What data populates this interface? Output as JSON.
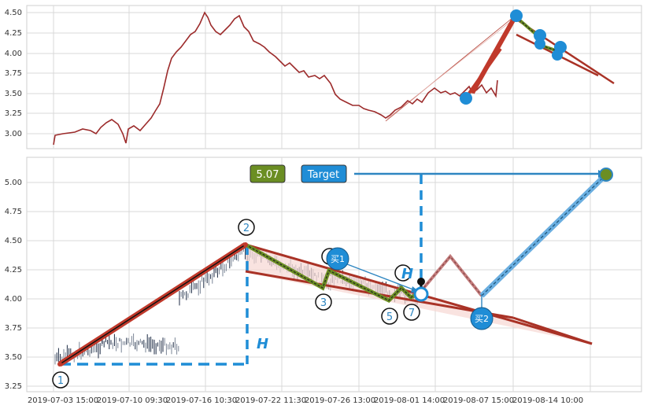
{
  "chart_data": [
    {
      "type": "line",
      "panel": "overview",
      "ylim": [
        2.8,
        4.58
      ],
      "yticks": [
        "3.00",
        "3.25",
        "3.50",
        "3.75",
        "4.00",
        "4.25",
        "4.50"
      ],
      "series": [
        {
          "values": [
            2.86,
            2.98,
            3.0,
            3.02,
            3.03,
            3.06,
            3.05,
            3.09,
            3.12,
            3.16,
            3.14,
            3.1,
            2.91,
            3.08,
            3.12,
            3.12,
            3.26,
            3.45,
            3.75,
            3.9,
            4.05,
            4.12,
            4.25,
            4.44,
            4.5,
            4.36,
            4.28,
            4.25,
            4.32,
            4.42,
            4.45,
            4.3,
            4.25,
            4.2,
            4.18,
            4.05,
            3.98,
            3.93,
            3.86,
            3.78,
            3.72,
            3.67,
            3.62,
            3.55,
            3.45,
            3.34,
            3.32,
            3.28,
            3.22,
            3.24,
            3.17,
            3.21,
            3.24,
            3.3,
            3.36,
            3.4,
            3.45,
            3.42,
            3.44,
            3.5,
            3.46,
            3.52,
            3.4
          ]
        }
      ],
      "overlays": {
        "up_thick": [
          [
            3.43,
            3.32
          ],
          [
            4.28,
            3.86
          ],
          [
            4.42,
            4.42
          ]
        ],
        "dots": [
          3.43,
          4.46,
          4.23,
          4.11,
          4.19,
          3.99,
          4.06
        ],
        "fan_lines": [
          [
            4.42,
            3.62
          ],
          [
            4.4,
            4.0
          ]
        ],
        "thin_up": [
          [
            3.16,
            4.44
          ]
        ]
      }
    },
    {
      "type": "line",
      "panel": "detail",
      "ylim": [
        3.22,
        5.17
      ],
      "yticks": [
        "3.25",
        "3.50",
        "3.75",
        "4.00",
        "4.25",
        "4.50",
        "4.75",
        "5.00"
      ],
      "xticks": [
        "2019-07-03 15:00",
        "2019-07-10 09:30",
        "2019-07-16 10:30",
        "2019-07-22 11:30",
        "2019-07-26 13:00",
        "2019-08-01 14:00",
        "2019-08-07 15:00",
        "2019-08-14 10:00"
      ],
      "points": [
        {
          "label": "1",
          "x": 0,
          "y": 3.44
        },
        {
          "label": "2",
          "x": 0.3,
          "y": 4.47
        },
        {
          "label": "3",
          "x": 0.46,
          "y": 4.11
        },
        {
          "label": "5",
          "x": 0.6,
          "y": 3.98
        },
        {
          "label": "7",
          "x": 0.645,
          "y": 4.04
        }
      ],
      "annotations": {
        "value_box": "5.07",
        "target_box": "Target",
        "buy1": "买1",
        "buy2": "买2",
        "h_label": "H",
        "target_value": 5.07
      },
      "projection": [
        [
          0.645,
          4.04
        ],
        [
          0.715,
          4.36
        ],
        [
          0.79,
          4.03
        ],
        [
          1.0,
          5.07
        ]
      ]
    }
  ]
}
